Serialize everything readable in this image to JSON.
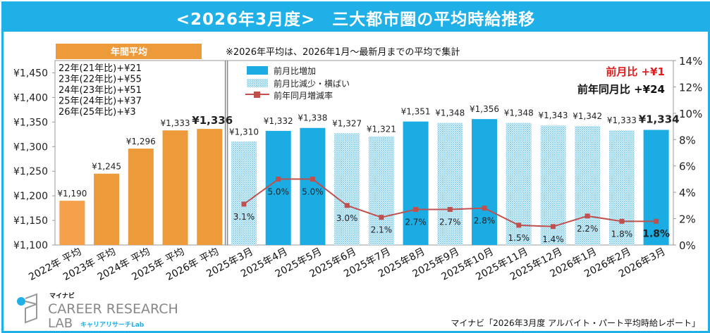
{
  "title": "<2026年3月度>　三大都市圏の平均時給推移",
  "annual_header": "年間平均",
  "note": "※2026年平均は、2026年1月～最新月までの平均で集計",
  "annual_diffs": [
    "22年(21年比)+¥21",
    "23年(22年比)+¥55",
    "24年(23年比)+¥51",
    "25年(24年比)+¥37",
    "26年(25年比)+¥3"
  ],
  "callouts": {
    "mom": "前月比 +¥1",
    "yoy": "前年同月比 +¥24"
  },
  "source": "マイナビ「2026年3月度 アルバイト・パート平均時給レポート」",
  "logo": {
    "brand": "マイナビ",
    "line1": "CAREER RESEARCH",
    "line2": "LAB",
    "sub": "キャリアリサーチLab"
  },
  "colors": {
    "frame": "#1eb0e6",
    "annual_bar": "#ec9a3a",
    "annual_bar_first": "#f5a04a",
    "increase_bar": "#1aace3",
    "hatched_bar": "#bfe6f6",
    "yoy_line": "#c0504d",
    "mom_text": "#e02020"
  },
  "chart_data": {
    "type": "bar+line",
    "categories": [
      "2022年 平均",
      "2023年 平均",
      "2024年 平均",
      "2025年 平均",
      "2026年 平均",
      "2025年3月",
      "2025年4月",
      "2025年5月",
      "2025年6月",
      "2025年7月",
      "2025年8月",
      "2025年9月",
      "2025年10月",
      "2025年11月",
      "2025年12月",
      "2026年1月",
      "2026年2月",
      "2026年3月"
    ],
    "series": [
      {
        "name": "年間平均",
        "type": "bar",
        "values": [
          1190,
          1245,
          1296,
          1333,
          1336,
          null,
          null,
          null,
          null,
          null,
          null,
          null,
          null,
          null,
          null,
          null,
          null,
          null
        ],
        "labels": [
          "¥1,190",
          "¥1,245",
          "¥1,296",
          "¥1,333",
          "¥1,336"
        ]
      },
      {
        "name": "前月比増加",
        "type": "bar",
        "values": [
          null,
          null,
          null,
          null,
          null,
          null,
          1332,
          1338,
          null,
          null,
          1351,
          null,
          1356,
          null,
          null,
          null,
          null,
          1334
        ]
      },
      {
        "name": "前月比減少・横ばい",
        "type": "bar",
        "values": [
          null,
          null,
          null,
          null,
          null,
          1310,
          null,
          null,
          1327,
          1321,
          null,
          1348,
          null,
          1348,
          1343,
          1342,
          1333,
          null
        ]
      },
      {
        "name": "前年同月増減率",
        "type": "line",
        "axis": "right",
        "values": [
          null,
          null,
          null,
          null,
          null,
          3.1,
          5.0,
          5.0,
          3.0,
          2.1,
          2.7,
          2.7,
          2.8,
          1.5,
          1.4,
          2.2,
          1.8,
          1.8
        ]
      }
    ],
    "monthly_labels": [
      "¥1,310",
      "¥1,332",
      "¥1,338",
      "¥1,327",
      "¥1,321",
      "¥1,351",
      "¥1,348",
      "¥1,356",
      "¥1,348",
      "¥1,343",
      "¥1,342",
      "¥1,333",
      "¥1,334"
    ],
    "rate_labels": [
      "3.1%",
      "5.0%",
      "5.0%",
      "3.0%",
      "2.1%",
      "2.7%",
      "2.7%",
      "2.8%",
      "1.5%",
      "1.4%",
      "2.2%",
      "1.8%",
      "1.8%"
    ],
    "ylim": [
      1100,
      1475
    ],
    "yticks": [
      "¥1,100",
      "¥1,150",
      "¥1,200",
      "¥1,250",
      "¥1,300",
      "¥1,350",
      "¥1,400",
      "¥1,450"
    ],
    "ytick_values": [
      1100,
      1150,
      1200,
      1250,
      1300,
      1350,
      1400,
      1450
    ],
    "y2lim": [
      0,
      14
    ],
    "y2ticks": [
      "0%",
      "2%",
      "4%",
      "6%",
      "8%",
      "10%",
      "12%",
      "14%"
    ],
    "y2tick_values": [
      0,
      2,
      4,
      6,
      8,
      10,
      12,
      14
    ],
    "legend": [
      "前月比増加",
      "前月比減少・横ばい",
      "前年同月増減率"
    ],
    "legend_position": "top-left",
    "grid": false
  }
}
